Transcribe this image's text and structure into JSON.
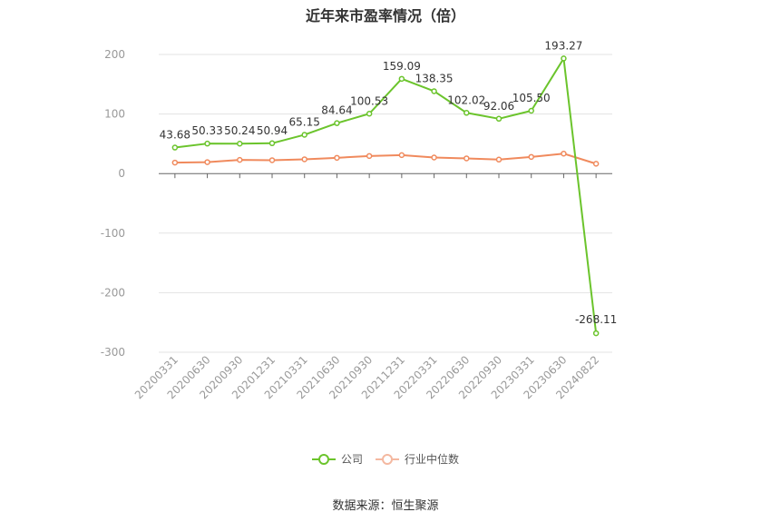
{
  "chart_data": {
    "type": "line",
    "title": "近年来市盈率情况（倍）",
    "categories": [
      "20200331",
      "20200630",
      "20200930",
      "20201231",
      "20210331",
      "20210630",
      "20210930",
      "20211231",
      "20220331",
      "20220630",
      "20220930",
      "20230331",
      "20230630",
      "20240822"
    ],
    "series": [
      {
        "name": "公司",
        "color": "#6bc42c",
        "values": [
          43.68,
          50.33,
          50.24,
          50.94,
          65.15,
          84.64,
          100.53,
          159.09,
          138.35,
          102.02,
          92.06,
          105.5,
          193.27,
          -268.11
        ],
        "labels": [
          "43.68",
          "50.33",
          "50.24",
          "50.94",
          "65.15",
          "84.64",
          "100.53",
          "159.09",
          "138.35",
          "102.02",
          "92.06",
          "105.50",
          "193.27",
          "-268.11"
        ]
      },
      {
        "name": "行业中位数",
        "color": "#f08a5d",
        "values": [
          18.5,
          19.2,
          23.0,
          22.5,
          24.0,
          26.5,
          29.5,
          31.0,
          27.0,
          25.5,
          23.5,
          28.0,
          33.5,
          16.5
        ]
      }
    ],
    "ylim": [
      -300,
      200
    ],
    "yticks": [
      200,
      100,
      0,
      -100,
      -200,
      -300
    ],
    "grid": true,
    "legend_position": "bottom"
  },
  "source_text": "数据来源：恒生聚源"
}
